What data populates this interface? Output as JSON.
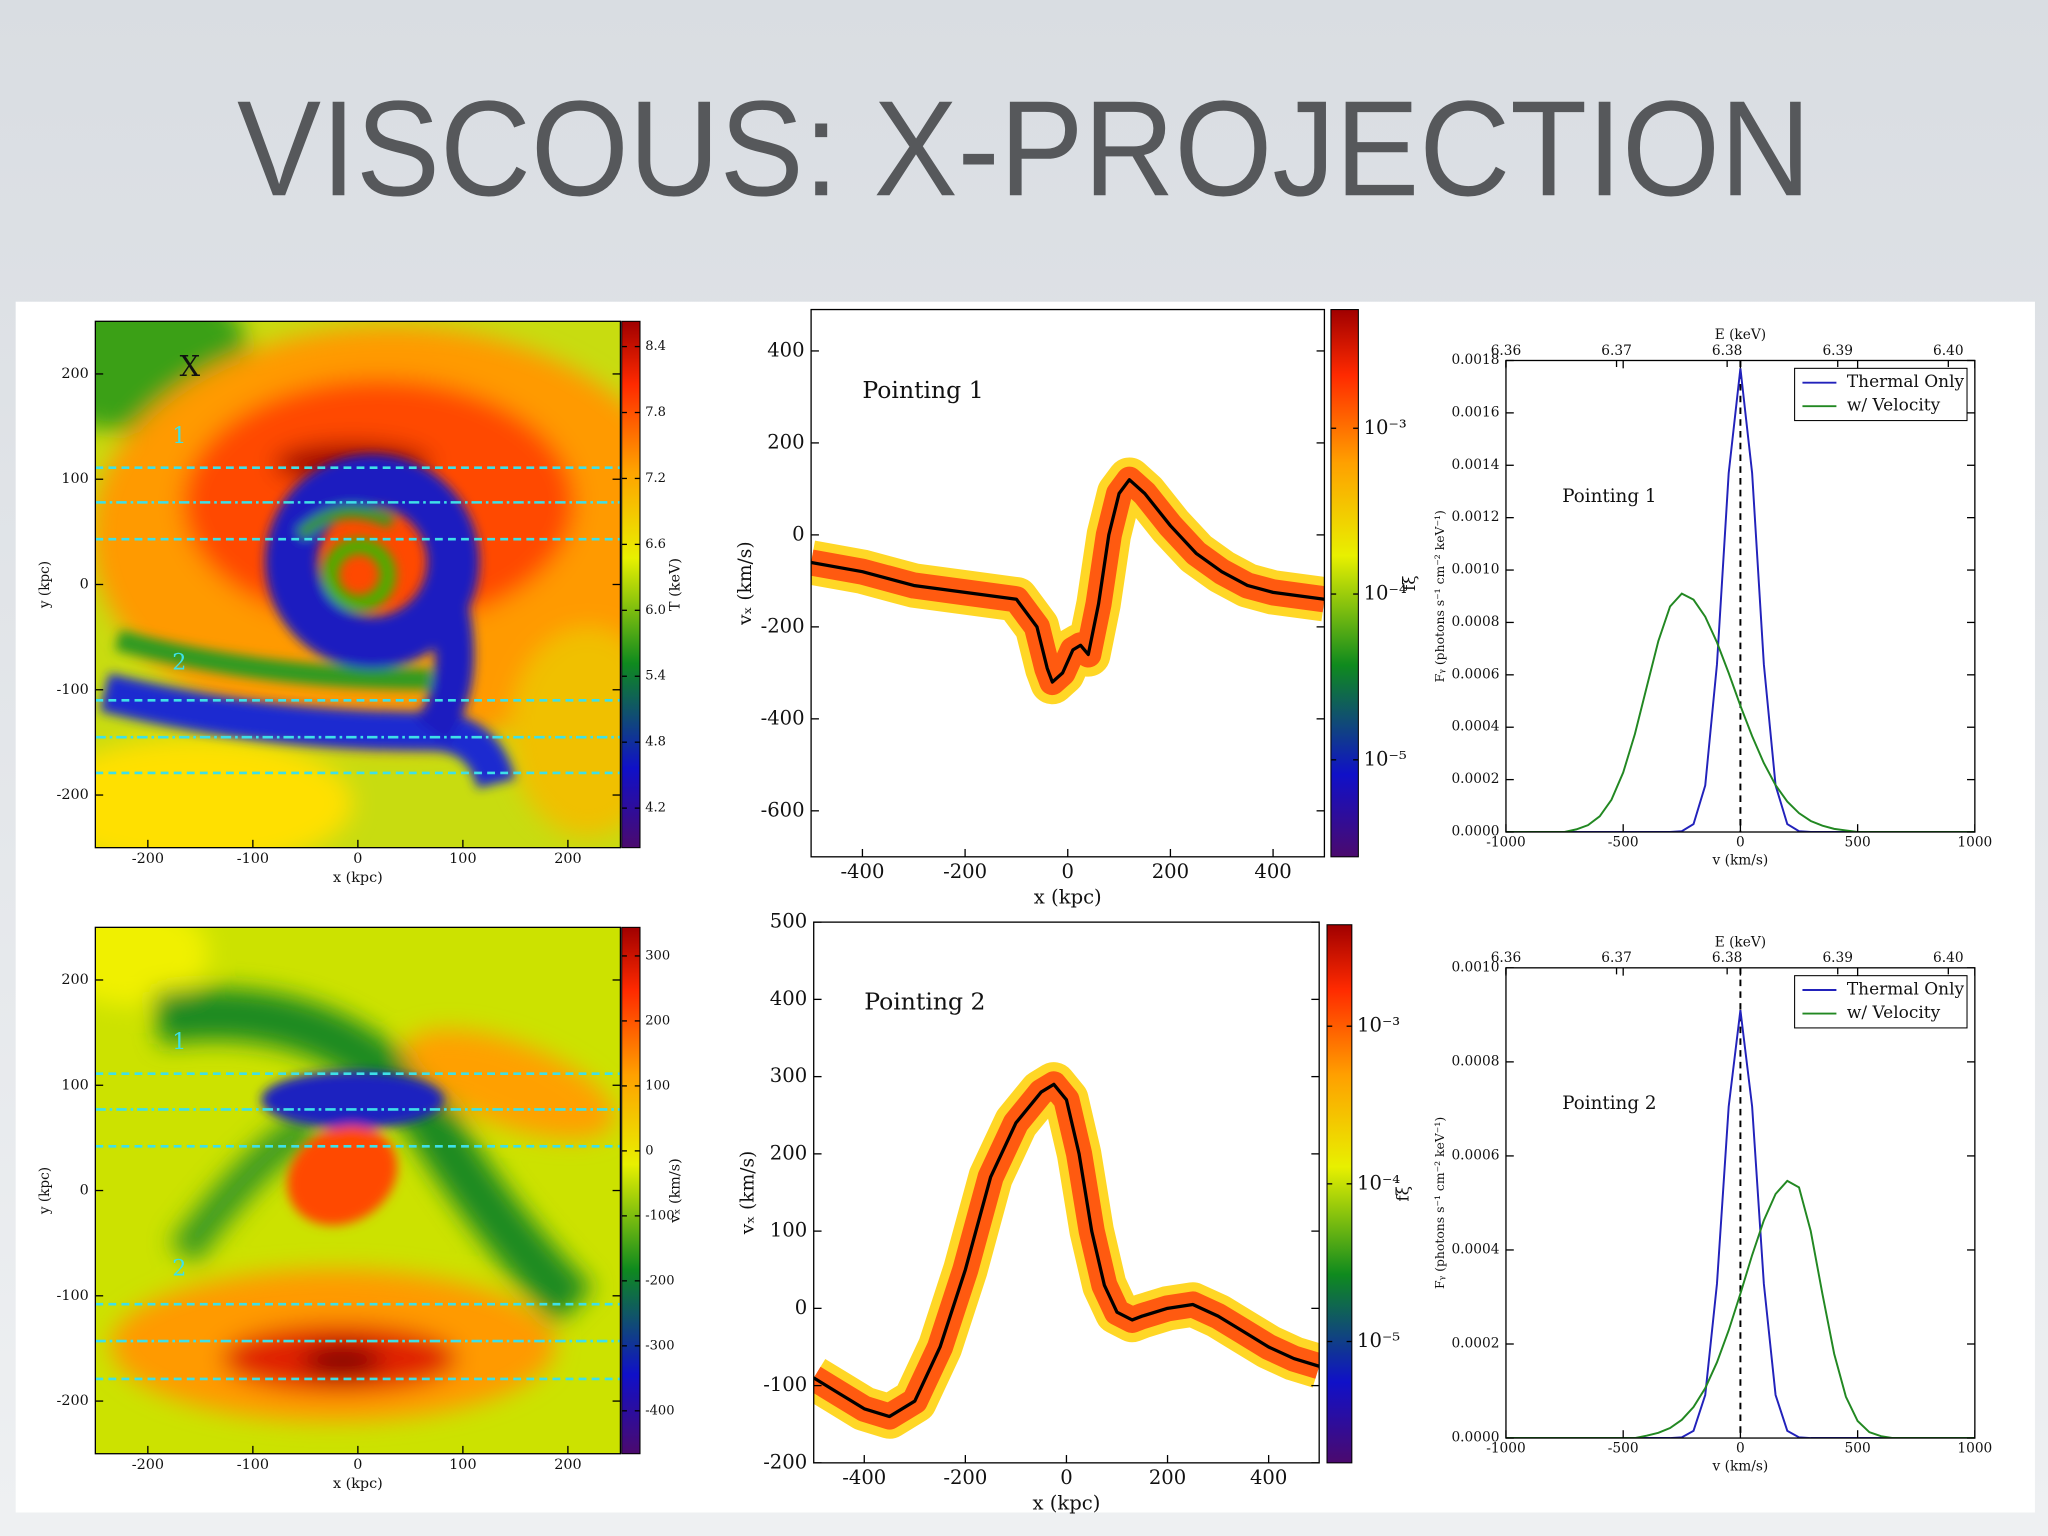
{
  "title": "VISCOUS: X-PROJECTION",
  "chart_data": [
    {
      "type": "heatmap",
      "xlabel": "x  (kpc)",
      "ylabel": "y  (kpc)",
      "xlim": [
        -250,
        250
      ],
      "ylim": [
        -250,
        250
      ],
      "xticks": [
        -200,
        -100,
        0,
        100,
        200
      ],
      "yticks": [
        -200,
        -100,
        0,
        100,
        200
      ],
      "colorbar_label": "T (keV)",
      "clim": [
        3.84,
        8.63
      ],
      "cticks": [
        4.2,
        4.8,
        5.4,
        {
          "value": 6,
          "label": "6.0"
        },
        6.6,
        7.2,
        7.8,
        8.4
      ],
      "annotations": [
        "X",
        "1",
        "2"
      ],
      "hlines": [
        111,
        78,
        43,
        -110,
        -145,
        -179
      ],
      "hline_color": "#3ee0e8"
    },
    {
      "type": "phase",
      "annotation": "Pointing 1",
      "xlabel": "x (kpc)",
      "ylabel": "vₓ (km/s)",
      "xlim": [
        -500,
        500
      ],
      "ylim": [
        -700,
        490
      ],
      "xticks": [
        -400,
        -200,
        0,
        200,
        400
      ],
      "yticks": [
        -600,
        -400,
        -200,
        0,
        200,
        400
      ],
      "x": [
        -500,
        -400,
        -300,
        -200,
        -100,
        -60,
        -40,
        -30,
        -10,
        10,
        25,
        40,
        60,
        80,
        100,
        120,
        150,
        200,
        250,
        300,
        350,
        400,
        500
      ],
      "y": [
        -60,
        -80,
        -110,
        -125,
        -140,
        -200,
        -290,
        -320,
        -300,
        -250,
        -240,
        -260,
        -150,
        0,
        90,
        120,
        90,
        20,
        -40,
        -80,
        -110,
        -125,
        -140
      ],
      "line_color": "#000000",
      "band_color": "#ff5a10",
      "colorbar_label": "fξ",
      "clog": true,
      "clim": [
        2.6e-06,
        0.0052
      ],
      "cticks": [
        {
          "value": 1e-05,
          "label": "10⁻⁵"
        },
        {
          "value": 0.0001,
          "label": "10⁻⁴"
        },
        {
          "value": 0.001,
          "label": "10⁻³"
        }
      ]
    },
    {
      "type": "line",
      "annotation": "Pointing 1",
      "xlabel": "v (km/s)",
      "ylabel": "Fᵧ (photons s⁻¹ cm⁻² keV⁻¹)",
      "x2label": "E (keV)",
      "xlim": [
        -1000,
        1000
      ],
      "x2lim": [
        6.36,
        6.4024
      ],
      "x2ticks": [
        6.36,
        6.37,
        6.38,
        6.39,
        {
          "value": 6.4,
          "label": "6.40"
        }
      ],
      "ylim": [
        0,
        0.0018
      ],
      "yticks": [
        {
          "value": 0,
          "label": "0.0000"
        },
        {
          "value": 0.0002,
          "label": "0.0002"
        },
        {
          "value": 0.0004,
          "label": "0.0004"
        },
        {
          "value": 0.0006,
          "label": "0.0006"
        },
        {
          "value": 0.0008,
          "label": "0.0008"
        },
        {
          "value": 0.001,
          "label": "0.0010"
        },
        {
          "value": 0.0012,
          "label": "0.0012"
        },
        {
          "value": 0.0014,
          "label": "0.0014"
        },
        {
          "value": 0.0016,
          "label": "0.0016"
        },
        {
          "value": 0.0018,
          "label": "0.0018"
        }
      ],
      "xticks": [
        -1000,
        -500,
        0,
        500,
        1000
      ],
      "vline": 0,
      "legend": "upper right",
      "x": [
        -1000,
        -950,
        -900,
        -850,
        -800,
        -750,
        -700,
        -650,
        -600,
        -550,
        -500,
        -450,
        -400,
        -350,
        -300,
        -250,
        -200,
        -150,
        -100,
        -50,
        0,
        50,
        100,
        150,
        200,
        250,
        300,
        350,
        400,
        450,
        500,
        550,
        600,
        650,
        700,
        750,
        800,
        850,
        900,
        950,
        1000
      ],
      "series": [
        {
          "name": "Thermal Only",
          "color": "#2222bb",
          "values": [
            0,
            0,
            0,
            0,
            0,
            0,
            0,
            0,
            0,
            0,
            0,
            0,
            0,
            0,
            0,
            3e-06,
            3e-05,
            0.000178,
            0.00064,
            0.00137,
            0.00177,
            0.00137,
            0.00064,
            0.000178,
            3e-05,
            3e-06,
            0,
            0,
            0,
            0,
            0,
            0,
            0,
            0,
            0,
            0,
            0,
            0,
            0,
            0,
            0
          ]
        },
        {
          "name": "w/ Velocity",
          "color": "#228822",
          "values": [
            0,
            0,
            0,
            0,
            0,
            0,
            1e-05,
            2.6e-05,
            6e-05,
            0.000123,
            0.000227,
            0.000374,
            0.000552,
            0.000729,
            0.000861,
            0.00091,
            0.000887,
            0.000822,
            0.000724,
            0.000607,
            0.000482,
            0.000366,
            0.000263,
            0.000179,
            0.000116,
            7.2e-05,
            4.2e-05,
            2.4e-05,
            1.2e-05,
            6e-06,
            0,
            0,
            0,
            0,
            0,
            0,
            0,
            0,
            0,
            0,
            0
          ]
        }
      ]
    },
    {
      "type": "heatmap",
      "xlabel": "x  (kpc)",
      "ylabel": "y  (kpc)",
      "xlim": [
        -250,
        250
      ],
      "ylim": [
        -250,
        250
      ],
      "xticks": [
        -200,
        -100,
        0,
        100,
        200
      ],
      "yticks": [
        -200,
        -100,
        0,
        100,
        200
      ],
      "colorbar_label": "vₓ (km/s)",
      "clim": [
        -466,
        344
      ],
      "cticks": [
        -400,
        -300,
        -200,
        -100,
        0,
        100,
        200,
        300
      ],
      "annotations": [
        "1",
        "2"
      ],
      "hlines": [
        111,
        77,
        42,
        -108,
        -143,
        -179
      ],
      "hline_color": "#3ee0e8"
    },
    {
      "type": "phase",
      "annotation": "Pointing 2",
      "xlabel": "x (kpc)",
      "ylabel": "vₓ (km/s)",
      "xlim": [
        -500,
        500
      ],
      "ylim": [
        -200,
        500
      ],
      "xticks": [
        -400,
        -200,
        0,
        200,
        400
      ],
      "yticks": [
        -200,
        -100,
        0,
        100,
        200,
        300,
        400,
        500
      ],
      "x": [
        -500,
        -450,
        -400,
        -350,
        -300,
        -250,
        -200,
        -150,
        -100,
        -50,
        -25,
        0,
        25,
        50,
        75,
        100,
        130,
        150,
        200,
        250,
        300,
        350,
        400,
        450,
        500
      ],
      "y": [
        -90,
        -110,
        -130,
        -140,
        -120,
        -50,
        50,
        170,
        240,
        280,
        290,
        270,
        200,
        100,
        30,
        -5,
        -15,
        -10,
        0,
        5,
        -10,
        -30,
        -50,
        -65,
        -75
      ],
      "line_color": "#000000",
      "band_color": "#ff5a10",
      "colorbar_label": "fξ",
      "clog": true,
      "clim": [
        1.7e-06,
        0.0044
      ],
      "cticks": [
        {
          "value": 1e-05,
          "label": "10⁻⁵"
        },
        {
          "value": 0.0001,
          "label": "10⁻⁴"
        },
        {
          "value": 0.001,
          "label": "10⁻³"
        }
      ]
    },
    {
      "type": "line",
      "annotation": "Pointing 2",
      "xlabel": "v (km/s)",
      "ylabel": "Fᵧ (photons s⁻¹ cm⁻² keV⁻¹)",
      "x2label": "E (keV)",
      "xlim": [
        -1000,
        1000
      ],
      "x2lim": [
        6.36,
        6.4024
      ],
      "x2ticks": [
        6.36,
        6.37,
        6.38,
        6.39,
        {
          "value": 6.4,
          "label": "6.40"
        }
      ],
      "ylim": [
        0,
        0.001
      ],
      "yticks": [
        {
          "value": 0,
          "label": "0.0000"
        },
        {
          "value": 0.0002,
          "label": "0.0002"
        },
        {
          "value": 0.0004,
          "label": "0.0004"
        },
        {
          "value": 0.0006,
          "label": "0.0006"
        },
        {
          "value": 0.0008,
          "label": "0.0008"
        },
        {
          "value": 0.001,
          "label": "0.0010"
        }
      ],
      "xticks": [
        -1000,
        -500,
        0,
        500,
        1000
      ],
      "vline": 0,
      "legend": "upper right",
      "x": [
        -1000,
        -950,
        -900,
        -850,
        -800,
        -750,
        -700,
        -650,
        -600,
        -550,
        -500,
        -450,
        -400,
        -350,
        -300,
        -250,
        -200,
        -150,
        -100,
        -50,
        0,
        50,
        100,
        150,
        200,
        250,
        300,
        350,
        400,
        450,
        500,
        550,
        600,
        650,
        700,
        750,
        800,
        850,
        900,
        950,
        1000
      ],
      "series": [
        {
          "name": "Thermal Only",
          "color": "#2222bb",
          "values": [
            0,
            0,
            0,
            0,
            0,
            0,
            0,
            0,
            0,
            0,
            0,
            0,
            0,
            0,
            0,
            1.5e-06,
            1.54e-05,
            9.15e-05,
            0.000328,
            0.000705,
            0.00091,
            0.000705,
            0.000328,
            9.15e-05,
            1.54e-05,
            1.5e-06,
            0,
            0,
            0,
            0,
            0,
            0,
            0,
            0,
            0,
            0,
            0,
            0,
            0,
            0,
            0
          ]
        },
        {
          "name": "w/ Velocity",
          "color": "#228822",
          "values": [
            0,
            0,
            0,
            0,
            0,
            0,
            0,
            0,
            0,
            0,
            0,
            0,
            5e-06,
            1.11e-05,
            2.13e-05,
            3.87e-05,
            6.6e-05,
            0.000106,
            0.000161,
            0.000229,
            0.000307,
            0.000389,
            0.000463,
            0.000519,
            0.000547,
            0.000533,
            0.00044,
            0.000306,
            0.000179,
            8.77e-05,
            3.62e-05,
            1.25e-05,
            4e-06,
            0,
            0,
            0,
            0,
            0,
            0,
            0,
            0
          ]
        }
      ]
    }
  ]
}
